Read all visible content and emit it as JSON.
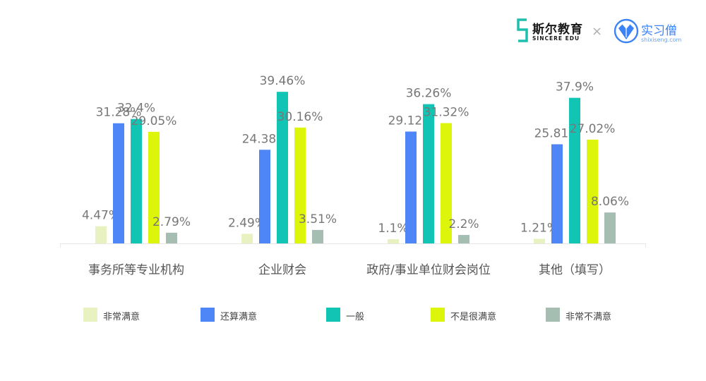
{
  "logos": {
    "brand1_name": "斯尔教育",
    "brand1_sub": "SINCERE EDU",
    "separator": "×",
    "brand2_name": "实习僧",
    "brand2_sub": "shixiseng.com",
    "brand1_color": "#1fbfae",
    "brand2_color": "#3b82f6"
  },
  "chart_data": {
    "type": "bar",
    "title": "",
    "xlabel": "",
    "ylabel": "",
    "ylim": [
      0,
      45
    ],
    "grid": false,
    "legend_position": "bottom",
    "categories": [
      "事务所等专业机构",
      "企业财会",
      "政府/事业单位财会岗位",
      "其他（填写）"
    ],
    "series": [
      {
        "name": "非常满意",
        "color": "#e8f2c0",
        "values": [
          4.47,
          2.49,
          1.1,
          1.21
        ],
        "labels": [
          "4.47%",
          "2.49%",
          "1.1%",
          "1.21%"
        ]
      },
      {
        "name": "还算满意",
        "color": "#4f86f7",
        "values": [
          31.28,
          24.38,
          29.12,
          25.81
        ],
        "labels": [
          "31.28%",
          "24.38%",
          "29.12%",
          "25.81%"
        ]
      },
      {
        "name": "一般",
        "color": "#12c4b4",
        "values": [
          32.4,
          39.46,
          36.26,
          37.9
        ],
        "labels": [
          "32.4%",
          "39.46%",
          "36.26%",
          "37.9%"
        ]
      },
      {
        "name": "不是很满意",
        "color": "#dcf50a",
        "values": [
          29.05,
          30.16,
          31.32,
          27.02
        ],
        "labels": [
          "29.05%",
          "30.16%",
          "31.32%",
          "27.02%"
        ]
      },
      {
        "name": "非常不满意",
        "color": "#a6bdb2",
        "values": [
          2.79,
          3.51,
          2.2,
          8.06
        ],
        "labels": [
          "2.79%",
          "3.51%",
          "2.2%",
          "8.06%"
        ]
      }
    ]
  }
}
